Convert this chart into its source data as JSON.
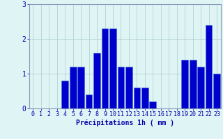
{
  "hours": [
    0,
    1,
    2,
    3,
    4,
    5,
    6,
    7,
    8,
    9,
    10,
    11,
    12,
    13,
    14,
    15,
    16,
    17,
    18,
    19,
    20,
    21,
    22,
    23
  ],
  "values": [
    0,
    0,
    0,
    0,
    0.8,
    1.2,
    1.2,
    0.4,
    1.6,
    2.3,
    2.3,
    1.2,
    1.2,
    0.6,
    0.6,
    0.2,
    0,
    0,
    0,
    1.4,
    1.4,
    1.2,
    2.4,
    1.0
  ],
  "bar_color": "#0000cc",
  "bar_edge_color": "#4477dd",
  "background_color": "#dff4f4",
  "grid_color": "#aacccc",
  "axis_color": "#8899bb",
  "text_color": "#0000aa",
  "xlabel": "Précipitations 1h ( mm )",
  "ylim": [
    0,
    3
  ],
  "yticks": [
    0,
    1,
    2,
    3
  ],
  "xlabel_fontsize": 7,
  "tick_fontsize": 6
}
